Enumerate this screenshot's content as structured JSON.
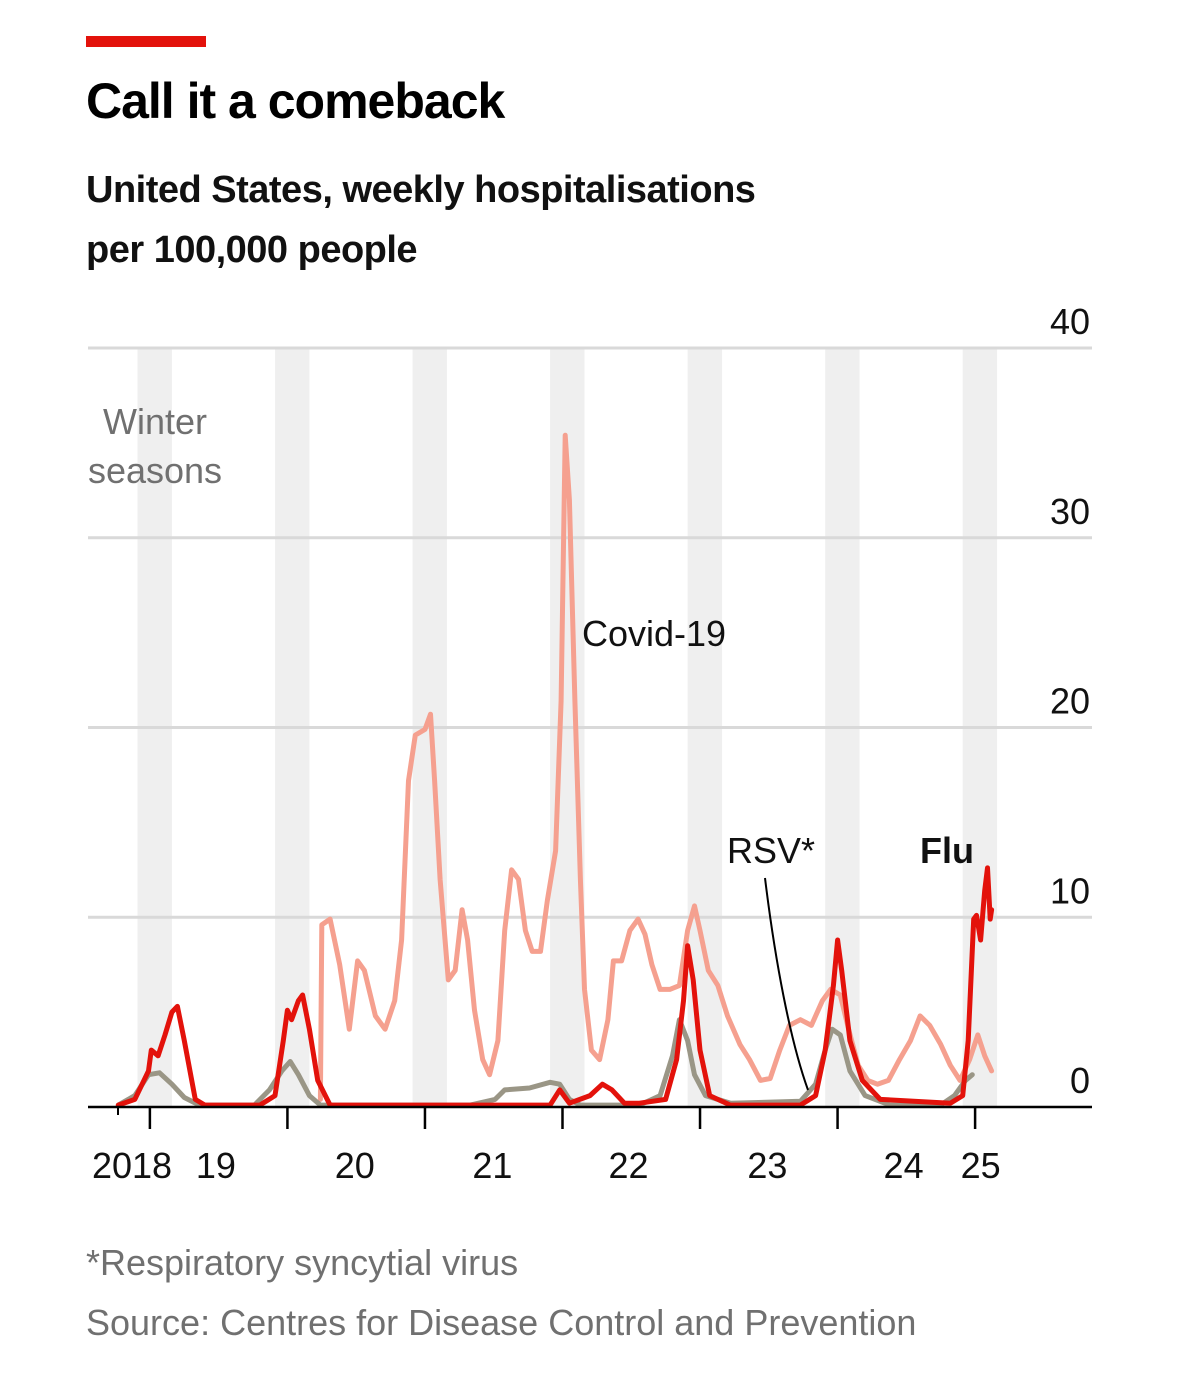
{
  "chart_data": {
    "type": "line",
    "title": "Call it a comeback",
    "subtitle": [
      "United States, weekly hospitalisations",
      "per 100,000 people"
    ],
    "shading_label": [
      "Winter",
      "seasons"
    ],
    "winter_seasons": [
      [
        2018.91,
        2019.16
      ],
      [
        2019.91,
        2020.16
      ],
      [
        2020.91,
        2021.16
      ],
      [
        2021.91,
        2022.16
      ],
      [
        2022.91,
        2023.16
      ],
      [
        2023.91,
        2024.16
      ],
      [
        2024.91,
        2025.16
      ]
    ],
    "xlim": [
      2018.55,
      2025.85
    ],
    "xtick_marks": [
      2019,
      2020,
      2021,
      2022,
      2023,
      2024,
      2025
    ],
    "xticks": [
      {
        "value": 2018.87,
        "label": "2018"
      },
      {
        "value": 2019.48,
        "label": "19"
      },
      {
        "value": 2020.49,
        "label": "20"
      },
      {
        "value": 2021.49,
        "label": "21"
      },
      {
        "value": 2022.48,
        "label": "22"
      },
      {
        "value": 2023.49,
        "label": "23"
      },
      {
        "value": 2024.48,
        "label": "24"
      },
      {
        "value": 2025.04,
        "label": "25"
      }
    ],
    "ylim": [
      0,
      40
    ],
    "yticks": [
      0,
      10,
      20,
      30,
      40
    ],
    "grid": true,
    "series": [
      {
        "name": "Covid-19",
        "color": "#f5a08f",
        "x": [
          2020.24,
          2020.25,
          2020.31,
          2020.38,
          2020.45,
          2020.51,
          2020.56,
          2020.64,
          2020.71,
          2020.78,
          2020.83,
          2020.88,
          2020.93,
          2021.0,
          2021.04,
          2021.07,
          2021.11,
          2021.17,
          2021.22,
          2021.27,
          2021.31,
          2021.36,
          2021.42,
          2021.47,
          2021.53,
          2021.58,
          2021.63,
          2021.68,
          2021.73,
          2021.78,
          2021.84,
          2021.89,
          2021.95,
          2021.99,
          2022.02,
          2022.05,
          2022.09,
          2022.13,
          2022.16,
          2022.21,
          2022.27,
          2022.33,
          2022.37,
          2022.43,
          2022.49,
          2022.55,
          2022.6,
          2022.65,
          2022.71,
          2022.78,
          2022.85,
          2022.91,
          2022.96,
          2023.0,
          2023.06,
          2023.13,
          2023.2,
          2023.29,
          2023.36,
          2023.44,
          2023.51,
          2023.58,
          2023.65,
          2023.73,
          2023.81,
          2023.89,
          2023.95,
          2024.02,
          2024.08,
          2024.15,
          2024.22,
          2024.29,
          2024.37,
          2024.45,
          2024.53,
          2024.6,
          2024.67,
          2024.75,
          2024.82,
          2024.89,
          2024.96,
          2025.02,
          2025.07,
          2025.12
        ],
        "values": [
          0.4,
          9.6,
          9.9,
          7.5,
          4.1,
          7.7,
          7.2,
          4.8,
          4.1,
          5.6,
          8.8,
          17.2,
          19.6,
          19.9,
          20.7,
          17.2,
          12.0,
          6.7,
          7.2,
          10.4,
          8.8,
          5.1,
          2.5,
          1.7,
          3.5,
          9.3,
          12.5,
          12.0,
          9.3,
          8.2,
          8.2,
          10.9,
          13.5,
          21.4,
          35.4,
          32.0,
          21.4,
          12.0,
          6.2,
          3.0,
          2.5,
          4.6,
          7.7,
          7.7,
          9.3,
          9.9,
          9.1,
          7.5,
          6.2,
          6.2,
          6.4,
          9.3,
          10.6,
          9.3,
          7.2,
          6.4,
          4.8,
          3.3,
          2.5,
          1.4,
          1.5,
          3.0,
          4.3,
          4.6,
          4.3,
          5.6,
          6.2,
          5.9,
          4.1,
          2.2,
          1.4,
          1.2,
          1.4,
          2.5,
          3.5,
          4.8,
          4.3,
          3.3,
          2.2,
          1.4,
          2.5,
          3.8,
          2.7,
          1.9
        ]
      },
      {
        "name": "RSV*",
        "color": "#9a9686",
        "x": [
          2018.77,
          2018.89,
          2018.99,
          2019.07,
          2019.16,
          2019.25,
          2019.36,
          2019.76,
          2019.87,
          2019.96,
          2020.02,
          2020.08,
          2020.16,
          2020.24,
          2021.33,
          2021.51,
          2021.58,
          2021.76,
          2021.91,
          2021.98,
          2022.05,
          2022.13,
          2022.56,
          2022.71,
          2022.8,
          2022.85,
          2022.91,
          2022.96,
          2023.04,
          2023.22,
          2023.73,
          2023.84,
          2023.91,
          2023.96,
          2024.02,
          2024.09,
          2024.2,
          2024.38,
          2024.75,
          2024.85,
          2024.93,
          2024.98
        ],
        "values": [
          0.1,
          0.6,
          1.7,
          1.8,
          1.2,
          0.5,
          0.1,
          0.1,
          0.9,
          1.9,
          2.4,
          1.7,
          0.6,
          0.1,
          0.1,
          0.4,
          0.9,
          1.0,
          1.3,
          1.2,
          0.4,
          0.1,
          0.1,
          0.6,
          2.7,
          4.6,
          3.5,
          1.7,
          0.6,
          0.2,
          0.3,
          1.2,
          3.0,
          4.1,
          3.8,
          1.9,
          0.6,
          0.1,
          0.1,
          0.6,
          1.4,
          1.7
        ]
      },
      {
        "name": "Flu",
        "color": "#e3120b",
        "x": [
          2018.77,
          2018.89,
          2018.99,
          2019.01,
          2019.06,
          2019.11,
          2019.16,
          2019.2,
          2019.25,
          2019.33,
          2019.4,
          2019.8,
          2019.91,
          2019.97,
          2020.0,
          2020.03,
          2020.08,
          2020.11,
          2020.16,
          2020.22,
          2020.31,
          2021.91,
          2021.98,
          2022.05,
          2022.2,
          2022.29,
          2022.36,
          2022.45,
          2022.56,
          2022.75,
          2022.83,
          2022.88,
          2022.91,
          2022.95,
          2023.0,
          2023.07,
          2023.22,
          2023.73,
          2023.84,
          2023.91,
          2023.97,
          2024.0,
          2024.03,
          2024.09,
          2024.18,
          2024.31,
          2024.82,
          2024.91,
          2024.95,
          2024.99,
          2025.01,
          2025.04,
          2025.07,
          2025.09,
          2025.11,
          2025.12
        ],
        "values": [
          0.1,
          0.4,
          1.9,
          3.0,
          2.7,
          3.8,
          5.0,
          5.3,
          3.5,
          0.4,
          0.1,
          0.1,
          0.6,
          3.5,
          5.1,
          4.6,
          5.6,
          5.9,
          4.1,
          1.4,
          0.1,
          0.1,
          0.9,
          0.2,
          0.6,
          1.2,
          0.9,
          0.2,
          0.2,
          0.4,
          2.5,
          5.6,
          8.5,
          6.7,
          3.0,
          0.6,
          0.1,
          0.1,
          0.6,
          3.0,
          6.4,
          8.8,
          7.2,
          3.5,
          1.4,
          0.4,
          0.2,
          0.6,
          3.5,
          9.9,
          10.1,
          8.8,
          11.4,
          12.6,
          9.9,
          10.4
        ]
      }
    ],
    "footnote": "*Respiratory syncytial virus",
    "source": "Source: Centres for Disease Control and Prevention"
  }
}
